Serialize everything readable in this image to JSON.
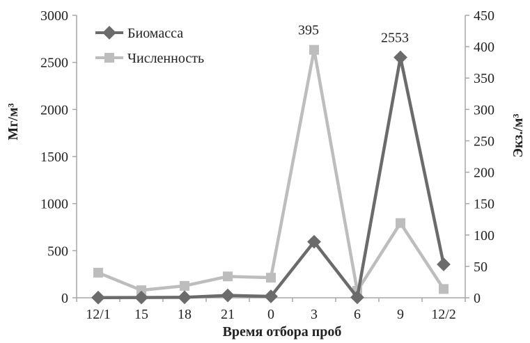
{
  "chart_data": {
    "type": "line",
    "title": "",
    "xlabel": "Время отбора проб",
    "ylabel": "Мг/м³",
    "y2label": "Экз./м³",
    "categories": [
      "12/1",
      "15",
      "18",
      "21",
      "0",
      "3",
      "6",
      "9",
      "12/2"
    ],
    "ylim": [
      0,
      3000
    ],
    "yticks": [
      0,
      500,
      1000,
      1500,
      2000,
      2500,
      3000
    ],
    "y2lim": [
      0,
      450
    ],
    "y2ticks": [
      0,
      50,
      100,
      150,
      200,
      250,
      300,
      350,
      400,
      450
    ],
    "grid": false,
    "legend_position": "top-left",
    "series": [
      {
        "name": "Биомасса",
        "axis": "left",
        "marker": "diamond",
        "color": "#6b6b6b",
        "values": [
          2,
          3,
          5,
          25,
          15,
          595,
          5,
          2553,
          355
        ]
      },
      {
        "name": "Численность",
        "axis": "right",
        "marker": "square",
        "color": "#bdbdbd",
        "values": [
          40,
          12,
          19,
          34,
          32,
          395,
          11,
          119,
          14
        ]
      }
    ],
    "annotations": [
      {
        "text": "395",
        "series": 1,
        "index": 5
      },
      {
        "text": "2553",
        "series": 0,
        "index": 7
      }
    ]
  }
}
